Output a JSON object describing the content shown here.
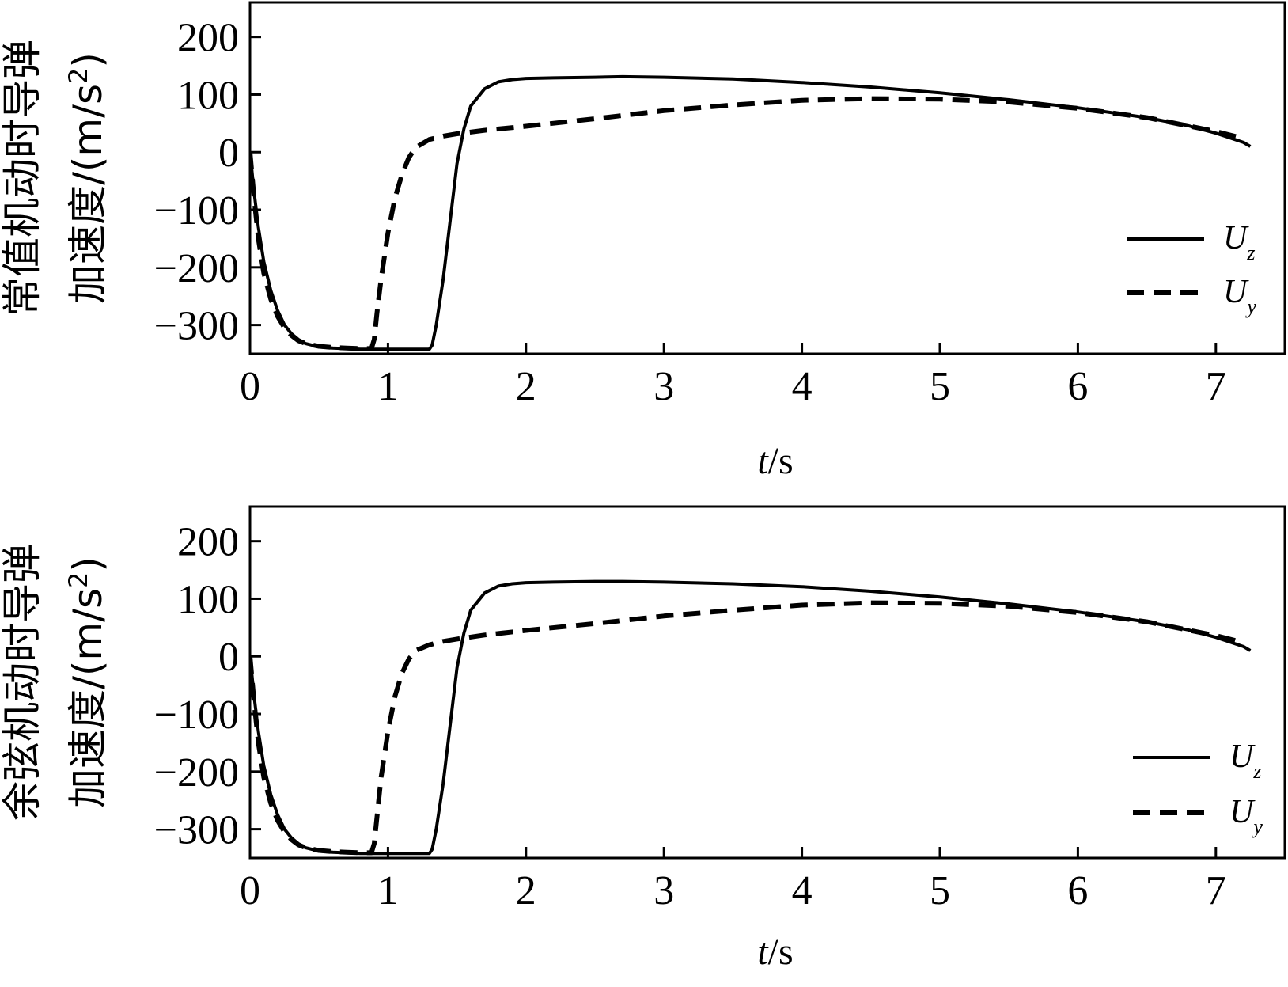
{
  "chart_data": [
    {
      "type": "line",
      "title": "",
      "ylabel_line1": "常值机动时导弹",
      "ylabel_line2": "加速度/(m/s",
      "ylabel_sup": "2",
      "ylabel_close": ")",
      "xlabel_italic": "t",
      "xlabel_rest": "/s",
      "xlim": [
        0,
        7.5
      ],
      "ylim": [
        -350,
        260
      ],
      "xticks": [
        0,
        1,
        2,
        3,
        4,
        5,
        6,
        7
      ],
      "xtick_labels": [
        "0",
        "1",
        "2",
        "3",
        "4",
        "5",
        "6",
        "7"
      ],
      "yticks": [
        200,
        100,
        0,
        -100,
        -200,
        -300
      ],
      "ytick_labels": [
        "200",
        "100",
        "0",
        "−100",
        "−200",
        "−300"
      ],
      "grid": false,
      "legend_position": "right",
      "series": [
        {
          "name": "U",
          "sub": "z",
          "style": "solid",
          "color": "#000000",
          "x": [
            0,
            0.03,
            0.06,
            0.1,
            0.15,
            0.2,
            0.25,
            0.3,
            0.35,
            0.4,
            0.5,
            0.6,
            0.8,
            1.0,
            1.2,
            1.3,
            1.32,
            1.35,
            1.4,
            1.45,
            1.5,
            1.55,
            1.6,
            1.7,
            1.8,
            1.9,
            2.0,
            2.2,
            2.5,
            2.7,
            3.0,
            3.5,
            4.0,
            4.5,
            5.0,
            5.5,
            6.0,
            6.5,
            6.8,
            7.0,
            7.1,
            7.2,
            7.25
          ],
          "y": [
            0,
            -70,
            -130,
            -190,
            -240,
            -275,
            -300,
            -315,
            -325,
            -332,
            -338,
            -340,
            -342,
            -342,
            -342,
            -342,
            -335,
            -300,
            -220,
            -120,
            -20,
            40,
            80,
            110,
            122,
            126,
            128,
            129,
            130,
            131,
            130,
            127,
            121,
            113,
            103,
            91,
            77,
            60,
            46,
            33,
            25,
            17,
            10
          ]
        },
        {
          "name": "U",
          "sub": "y",
          "style": "dashed",
          "color": "#000000",
          "x": [
            0,
            0.03,
            0.06,
            0.1,
            0.15,
            0.2,
            0.25,
            0.3,
            0.35,
            0.4,
            0.5,
            0.6,
            0.7,
            0.8,
            0.88,
            0.9,
            0.92,
            0.95,
            1.0,
            1.05,
            1.1,
            1.15,
            1.2,
            1.3,
            1.4,
            1.5,
            1.7,
            2.0,
            2.5,
            3.0,
            3.5,
            4.0,
            4.5,
            5.0,
            5.5,
            6.0,
            6.5,
            7.0,
            7.2
          ],
          "y": [
            0,
            -80,
            -150,
            -210,
            -255,
            -285,
            -305,
            -318,
            -327,
            -332,
            -337,
            -339,
            -340,
            -341,
            -341,
            -325,
            -280,
            -220,
            -140,
            -80,
            -40,
            -10,
            8,
            22,
            28,
            32,
            38,
            45,
            58,
            72,
            82,
            90,
            93,
            92,
            87,
            76,
            60,
            36,
            24
          ]
        }
      ]
    },
    {
      "type": "line",
      "title": "",
      "ylabel_line1": "余弦机动时导弹",
      "ylabel_line2": "加速度/(m/s",
      "ylabel_sup": "2",
      "ylabel_close": ")",
      "xlabel_italic": "t",
      "xlabel_rest": "/s",
      "xlim": [
        0,
        7.5
      ],
      "ylim": [
        -350,
        260
      ],
      "xticks": [
        0,
        1,
        2,
        3,
        4,
        5,
        6,
        7
      ],
      "xtick_labels": [
        "0",
        "1",
        "2",
        "3",
        "4",
        "5",
        "6",
        "7"
      ],
      "yticks": [
        200,
        100,
        0,
        -100,
        -200,
        -300
      ],
      "ytick_labels": [
        "200",
        "100",
        "0",
        "−100",
        "−200",
        "−300"
      ],
      "grid": false,
      "legend_position": "lower right",
      "series": [
        {
          "name": "U",
          "sub": "z",
          "style": "solid",
          "color": "#000000",
          "x": [
            0,
            0.03,
            0.06,
            0.1,
            0.15,
            0.2,
            0.25,
            0.3,
            0.35,
            0.4,
            0.5,
            0.6,
            0.8,
            1.0,
            1.2,
            1.3,
            1.32,
            1.35,
            1.4,
            1.45,
            1.5,
            1.55,
            1.6,
            1.7,
            1.8,
            1.9,
            2.0,
            2.2,
            2.5,
            2.7,
            3.0,
            3.5,
            4.0,
            4.5,
            5.0,
            5.5,
            6.0,
            6.5,
            6.8,
            7.0,
            7.1,
            7.2,
            7.25
          ],
          "y": [
            0,
            -70,
            -130,
            -190,
            -240,
            -275,
            -300,
            -315,
            -325,
            -332,
            -338,
            -340,
            -342,
            -342,
            -342,
            -342,
            -335,
            -300,
            -220,
            -120,
            -20,
            40,
            80,
            110,
            122,
            126,
            128,
            129,
            130,
            130,
            129,
            126,
            121,
            113,
            103,
            91,
            77,
            60,
            46,
            33,
            25,
            17,
            10
          ]
        },
        {
          "name": "U",
          "sub": "y",
          "style": "dashed",
          "color": "#000000",
          "x": [
            0,
            0.03,
            0.06,
            0.1,
            0.15,
            0.2,
            0.25,
            0.3,
            0.35,
            0.4,
            0.5,
            0.6,
            0.7,
            0.8,
            0.88,
            0.9,
            0.92,
            0.95,
            1.0,
            1.05,
            1.1,
            1.15,
            1.2,
            1.3,
            1.4,
            1.5,
            1.7,
            2.0,
            2.5,
            3.0,
            3.5,
            4.0,
            4.5,
            5.0,
            5.5,
            6.0,
            6.5,
            7.0,
            7.2
          ],
          "y": [
            0,
            -80,
            -150,
            -210,
            -255,
            -285,
            -305,
            -318,
            -327,
            -332,
            -337,
            -339,
            -340,
            -341,
            -341,
            -325,
            -280,
            -210,
            -130,
            -70,
            -30,
            -5,
            10,
            20,
            26,
            30,
            37,
            45,
            57,
            70,
            80,
            89,
            93,
            92,
            87,
            76,
            60,
            36,
            24
          ]
        }
      ]
    }
  ]
}
